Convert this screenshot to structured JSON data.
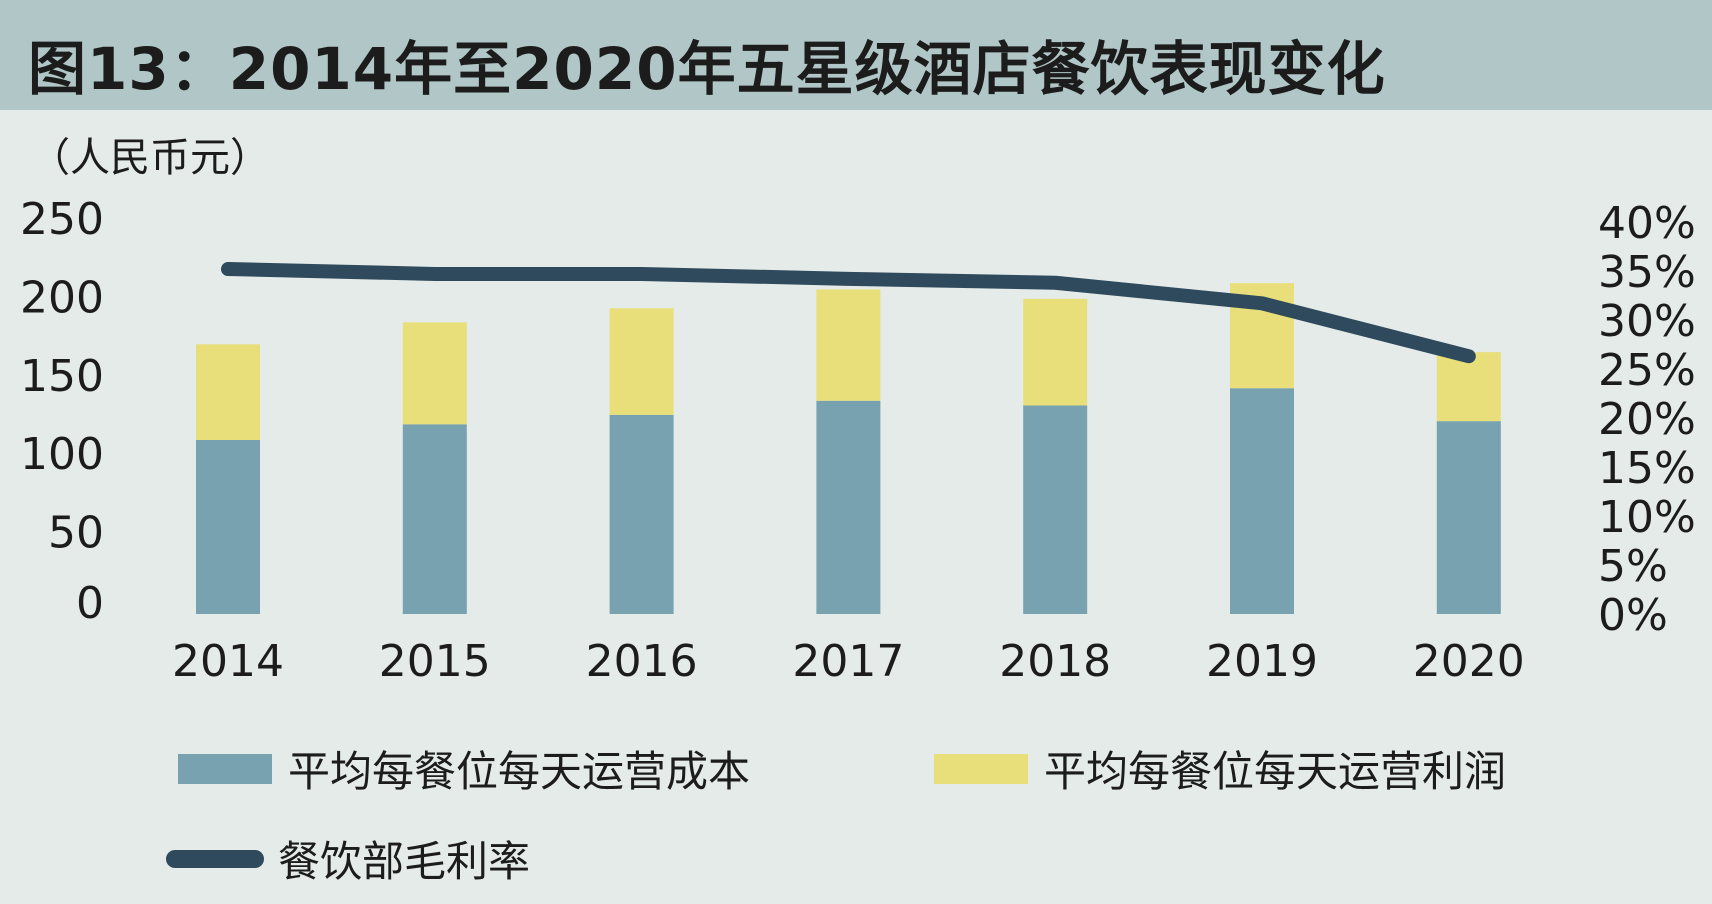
{
  "title": "图13：2014年至2020年五星级酒店餐饮表现变化",
  "unit_label": "（人民币元）",
  "colors": {
    "cost": "#78a2b0",
    "profit": "#e8df7a",
    "margin": "#2f4a5d",
    "header": "#b1c6c6",
    "background": "#e4ebe8"
  },
  "legend": {
    "cost": "平均每餐位每天运营成本",
    "profit": "平均每餐位每天运营利润",
    "margin": "餐饮部毛利率"
  },
  "chart_data": {
    "type": "bar",
    "stacked": true,
    "categories": [
      "2014",
      "2015",
      "2016",
      "2017",
      "2018",
      "2019",
      "2020"
    ],
    "series": [
      {
        "name": "平均每餐位每天运营成本",
        "type": "bar",
        "axis": "left",
        "values": [
          111,
          121,
          127,
          136,
          133,
          144,
          123
        ]
      },
      {
        "name": "平均每餐位每天运营利润",
        "type": "bar",
        "axis": "left",
        "values": [
          61,
          65,
          68,
          71,
          68,
          67,
          44
        ]
      },
      {
        "name": "餐饮部毛利率",
        "type": "line",
        "axis": "right",
        "values": [
          35.2,
          34.7,
          34.7,
          34.2,
          33.8,
          31.7,
          26.3
        ]
      }
    ],
    "y_left": {
      "ticks": [
        "0",
        "50",
        "100",
        "150",
        "200",
        "250"
      ],
      "ylim": [
        0,
        250
      ]
    },
    "y_right": {
      "ticks": [
        "0%",
        "5%",
        "10%",
        "15%",
        "20%",
        "25%",
        "30%",
        "35%",
        "40%"
      ],
      "ylim": [
        0,
        40
      ]
    },
    "grid": false,
    "legend_position": "bottom"
  }
}
